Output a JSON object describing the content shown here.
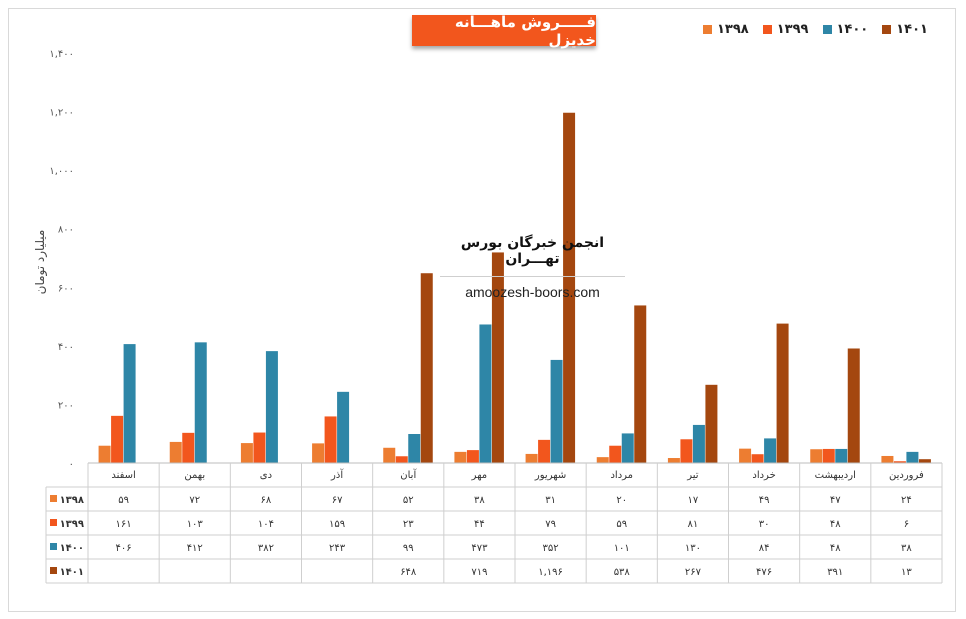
{
  "title": "فـــــروش ماهـــانه خدیزل",
  "watermark": {
    "title": "انجمن خبرگان بورس تهـــران",
    "url": "amoozesh-boors.com"
  },
  "colors": {
    "s1398": "#ed7d31",
    "s1399": "#f2561d",
    "s1400": "#2e86a7",
    "s1401": "#a4470f",
    "title_bg": "#f2561d"
  },
  "chart_data": {
    "type": "bar",
    "ylabel": "میلیارد تومان",
    "ylim": [
      0,
      1400
    ],
    "yticks": [
      "۰",
      "۲۰۰",
      "۴۰۰",
      "۶۰۰",
      "۸۰۰",
      "۱,۰۰۰",
      "۱,۲۰۰",
      "۱,۴۰۰"
    ],
    "ytick_values": [
      0,
      200,
      400,
      600,
      800,
      1000,
      1200,
      1400
    ],
    "categories": [
      "فروردین",
      "اردیبهشت",
      "خرداد",
      "تیر",
      "مرداد",
      "شهریور",
      "مهر",
      "آبان",
      "آذر",
      "دی",
      "بهمن",
      "اسفند"
    ],
    "legend_position": "top-right",
    "series": [
      {
        "name": "۱۳۹۸",
        "values": [
          24,
          47,
          49,
          17,
          20,
          31,
          38,
          52,
          67,
          68,
          72,
          59
        ],
        "labels": [
          "۲۴",
          "۴۷",
          "۴۹",
          "۱۷",
          "۲۰",
          "۳۱",
          "۳۸",
          "۵۲",
          "۶۷",
          "۶۸",
          "۷۲",
          "۵۹"
        ]
      },
      {
        "name": "۱۳۹۹",
        "values": [
          6,
          48,
          30,
          81,
          59,
          79,
          44,
          23,
          159,
          104,
          103,
          161
        ],
        "labels": [
          "۶",
          "۴۸",
          "۳۰",
          "۸۱",
          "۵۹",
          "۷۹",
          "۴۴",
          "۲۳",
          "۱۵۹",
          "۱۰۴",
          "۱۰۳",
          "۱۶۱"
        ]
      },
      {
        "name": "۱۴۰۰",
        "values": [
          38,
          48,
          84,
          130,
          101,
          352,
          473,
          99,
          243,
          382,
          412,
          406
        ],
        "labels": [
          "۳۸",
          "۴۸",
          "۸۴",
          "۱۳۰",
          "۱۰۱",
          "۳۵۲",
          "۴۷۳",
          "۹۹",
          "۲۴۳",
          "۳۸۲",
          "۴۱۲",
          "۴۰۶"
        ]
      },
      {
        "name": "۱۴۰۱",
        "values": [
          13,
          391,
          476,
          267,
          538,
          1196,
          719,
          648,
          null,
          null,
          null,
          null
        ],
        "labels": [
          "۱۳",
          "۳۹۱",
          "۴۷۶",
          "۲۶۷",
          "۵۳۸",
          "۱,۱۹۶",
          "۷۱۹",
          "۶۴۸",
          "",
          "",
          "",
          ""
        ]
      }
    ]
  }
}
